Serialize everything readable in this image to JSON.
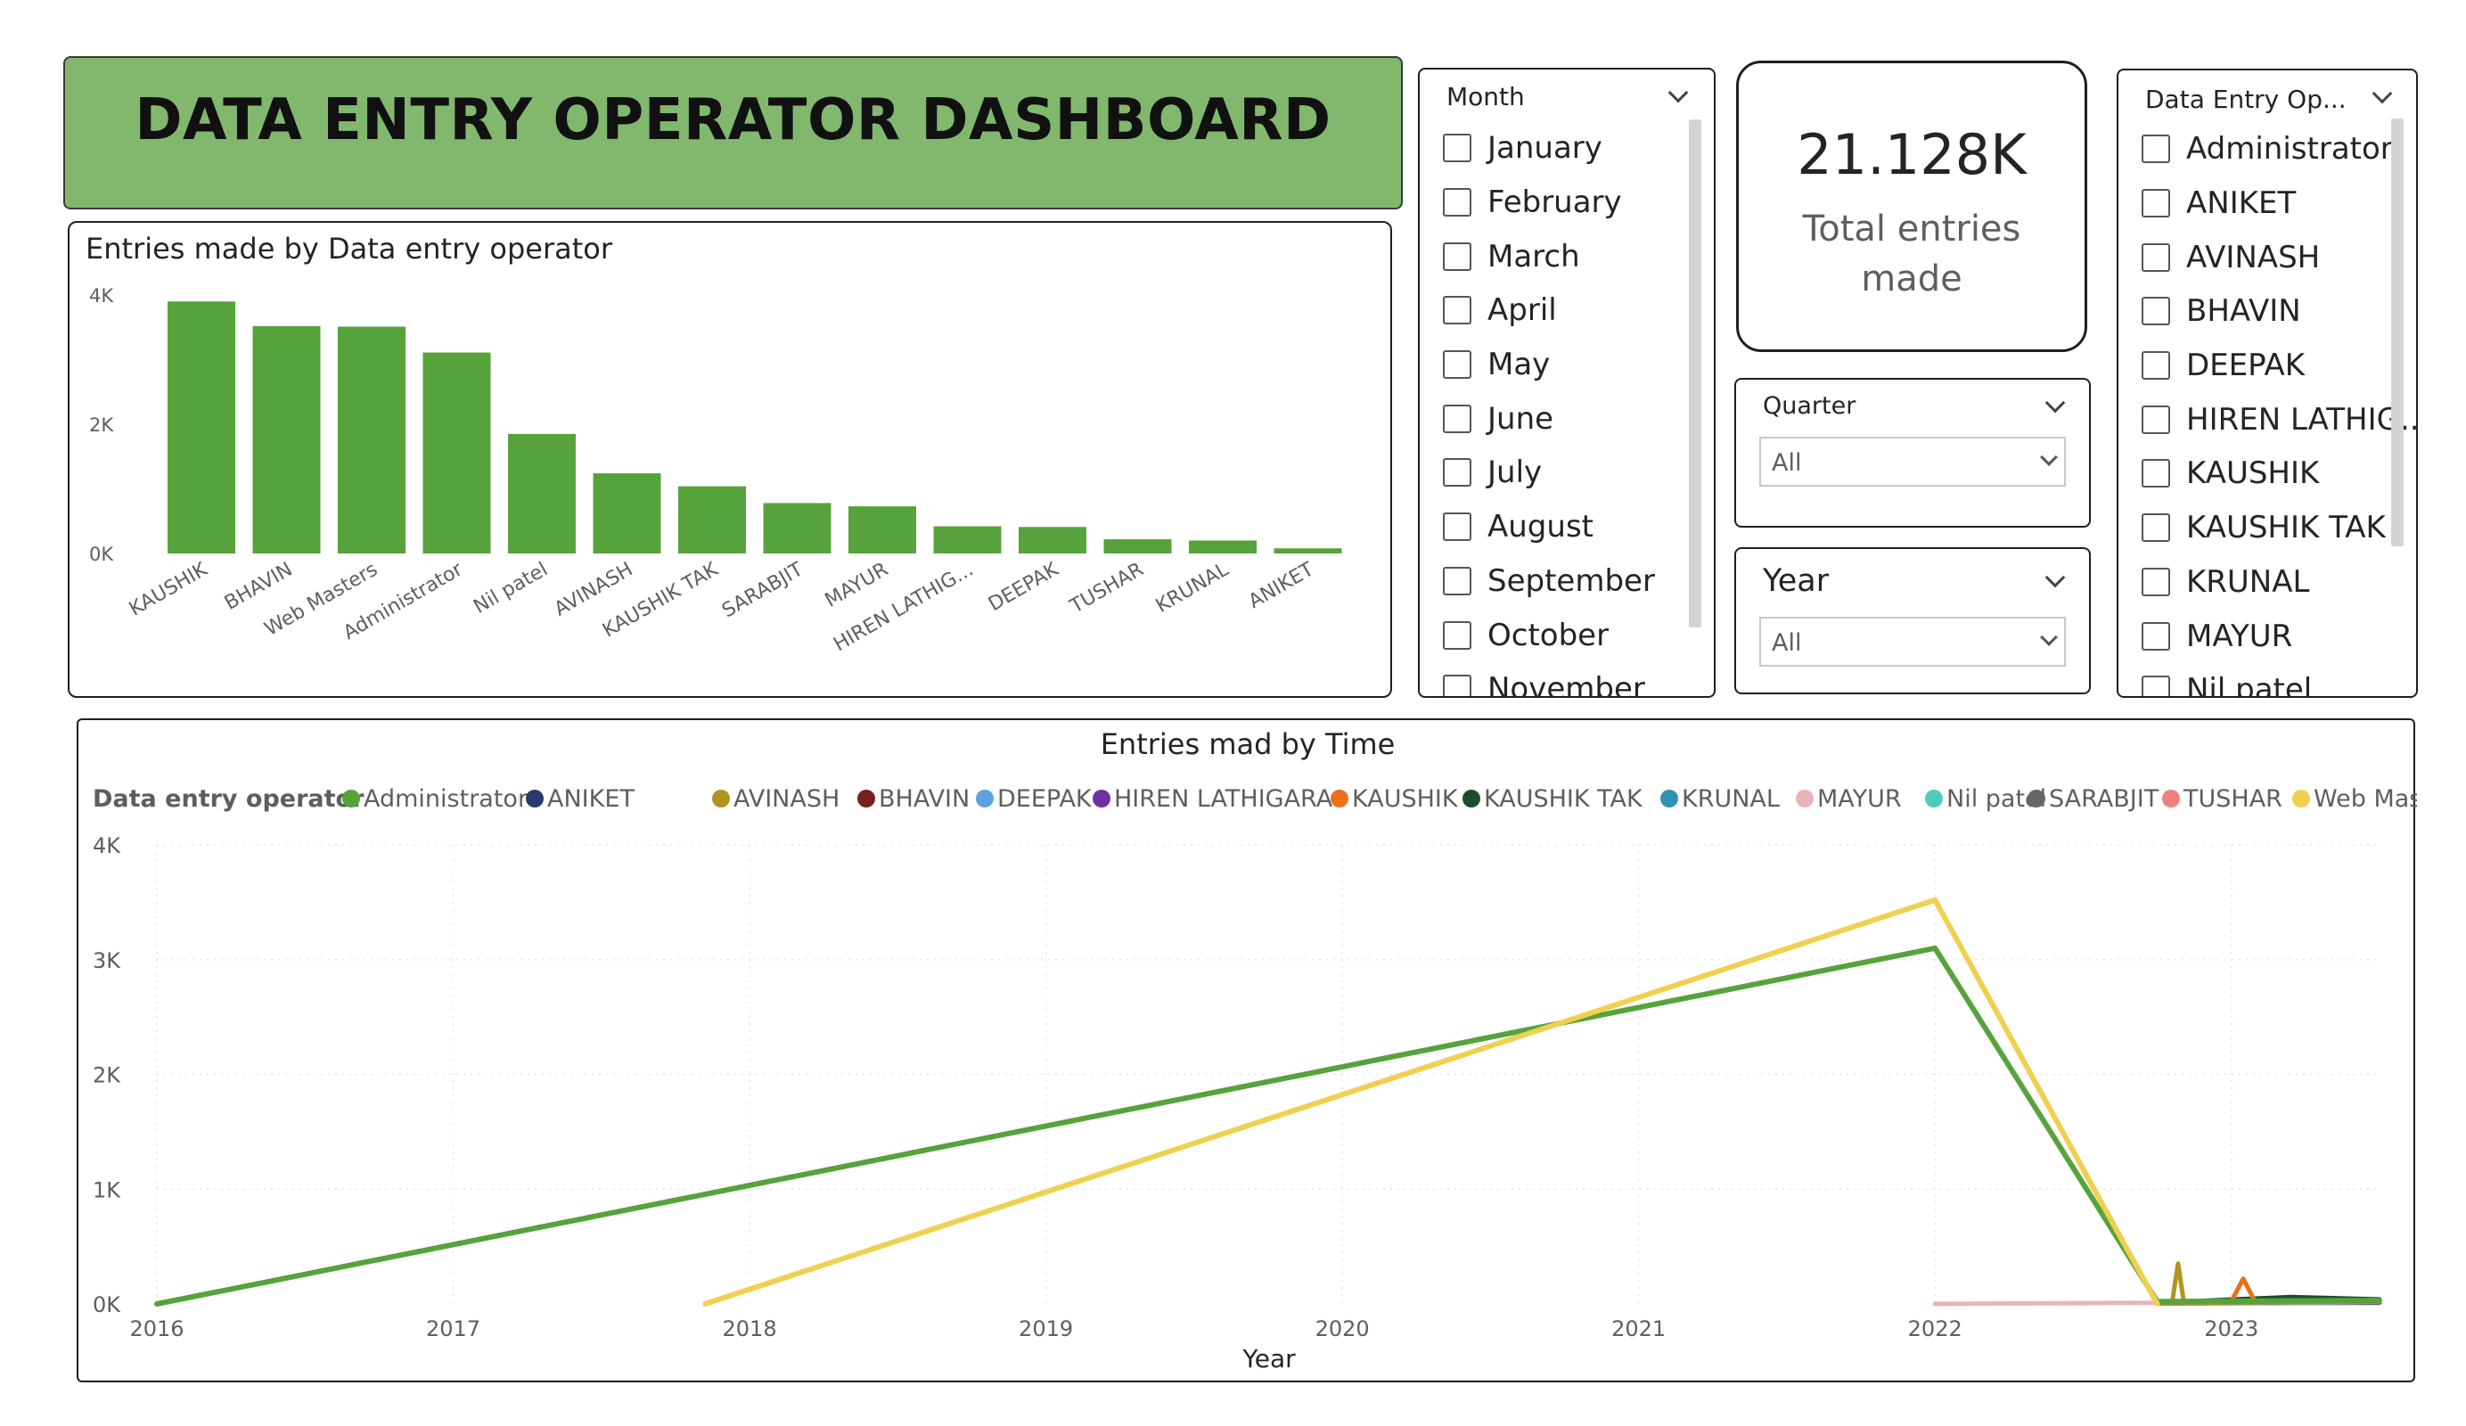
{
  "title": "DATA ENTRY OPERATOR DASHBOARD",
  "colors": {
    "bar": "#56a33b",
    "title_bg": "#82b86e"
  },
  "month_slicer": {
    "header": "Month",
    "items": [
      "January",
      "February",
      "March",
      "April",
      "May",
      "June",
      "July",
      "August",
      "September",
      "October",
      "November"
    ]
  },
  "kpi": {
    "value": "21.128K",
    "label": "Total entries made"
  },
  "quarter_slicer": {
    "header": "Quarter",
    "selected": "All"
  },
  "year_slicer": {
    "header": "Year",
    "selected": "All"
  },
  "operator_slicer": {
    "header": "Data Entry Op...",
    "items": [
      "Administrator",
      "ANIKET",
      "AVINASH",
      "BHAVIN",
      "DEEPAK",
      "HIREN LATHIG...",
      "KAUSHIK",
      "KAUSHIK TAK",
      "KRUNAL",
      "MAYUR",
      "Nil patel"
    ]
  },
  "chart_data": [
    {
      "type": "bar",
      "title": "Entries made by Data entry operator",
      "categories": [
        "KAUSHIK",
        "BHAVIN",
        "Web Masters",
        "Administrator",
        "Nil patel",
        "AVINASH",
        "KAUSHIK TAK",
        "SARABJIT",
        "MAYUR",
        "HIREN LATHIG...",
        "DEEPAK",
        "TUSHAR",
        "KRUNAL",
        "ANIKET"
      ],
      "values": [
        3900,
        3520,
        3510,
        3110,
        1850,
        1240,
        1040,
        780,
        730,
        420,
        410,
        220,
        200,
        80
      ],
      "yticks": [
        "0K",
        "2K",
        "4K"
      ],
      "ylim": [
        0,
        4000
      ],
      "xlabel": "",
      "ylabel": "",
      "grid": false
    },
    {
      "type": "line",
      "title": "Entries mad by Time",
      "legend_title": "Data entry operator",
      "legend_position": "top",
      "xlabel": "Year",
      "ylabel": "",
      "xticks": [
        "2016",
        "2017",
        "2018",
        "2019",
        "2020",
        "2021",
        "2022",
        "2023"
      ],
      "yticks": [
        "0K",
        "1K",
        "2K",
        "3K",
        "4K"
      ],
      "xlim": [
        2016,
        2023.5
      ],
      "ylim": [
        0,
        4000
      ],
      "grid": true,
      "series": [
        {
          "name": "Administrator",
          "color": "#56a33b",
          "x": [
            2016.0,
            2022.0,
            2022.75,
            2023.5
          ],
          "y": [
            0,
            3100,
            20,
            30
          ]
        },
        {
          "name": "ANIKET",
          "color": "#2a3a6e",
          "x": [
            2022.75,
            2023.1,
            2023.5
          ],
          "y": [
            10,
            20,
            15
          ]
        },
        {
          "name": "AVINASH",
          "color": "#b09520",
          "x": [
            2022.75,
            2022.8,
            2022.82,
            2022.84,
            2023.5
          ],
          "y": [
            10,
            10,
            350,
            10,
            20
          ]
        },
        {
          "name": "BHAVIN",
          "color": "#7a1f1f",
          "x": [
            2022.75,
            2023.5
          ],
          "y": [
            10,
            15
          ]
        },
        {
          "name": "DEEPAK",
          "color": "#5ba3e0",
          "x": [
            2022.75,
            2023.5
          ],
          "y": [
            5,
            15
          ]
        },
        {
          "name": "HIREN LATHIGARA",
          "color": "#7030a0",
          "x": [
            2022.75,
            2023.5
          ],
          "y": [
            5,
            10
          ]
        },
        {
          "name": "KAUSHIK",
          "color": "#e8711a",
          "x": [
            2022.75,
            2023.0,
            2023.04,
            2023.08,
            2023.5
          ],
          "y": [
            10,
            20,
            220,
            20,
            25
          ]
        },
        {
          "name": "KAUSHIK TAK",
          "color": "#1b4d2e",
          "x": [
            2022.75,
            2023.2,
            2023.5
          ],
          "y": [
            10,
            60,
            40
          ]
        },
        {
          "name": "KRUNAL",
          "color": "#2f94b4",
          "x": [
            2022.75,
            2023.5
          ],
          "y": [
            5,
            20
          ]
        },
        {
          "name": "MAYUR",
          "color": "#e8b4b8",
          "x": [
            2022.0,
            2022.75,
            2023.5
          ],
          "y": [
            0,
            10,
            15
          ]
        },
        {
          "name": "Nil patel",
          "color": "#4fc9b8",
          "x": [
            2022.75,
            2023.5
          ],
          "y": [
            10,
            30
          ]
        },
        {
          "name": "SARABJIT",
          "color": "#666666",
          "x": [
            2022.75,
            2023.3,
            2023.5
          ],
          "y": [
            10,
            50,
            30
          ]
        },
        {
          "name": "TUSHAR",
          "color": "#f08080",
          "x": [
            2022.75,
            2023.5
          ],
          "y": [
            5,
            10
          ]
        },
        {
          "name": "Web Masters",
          "color": "#f0d050",
          "x": [
            2017.85,
            2022.0,
            2022.75
          ],
          "y": [
            0,
            3520,
            0
          ]
        }
      ]
    }
  ]
}
